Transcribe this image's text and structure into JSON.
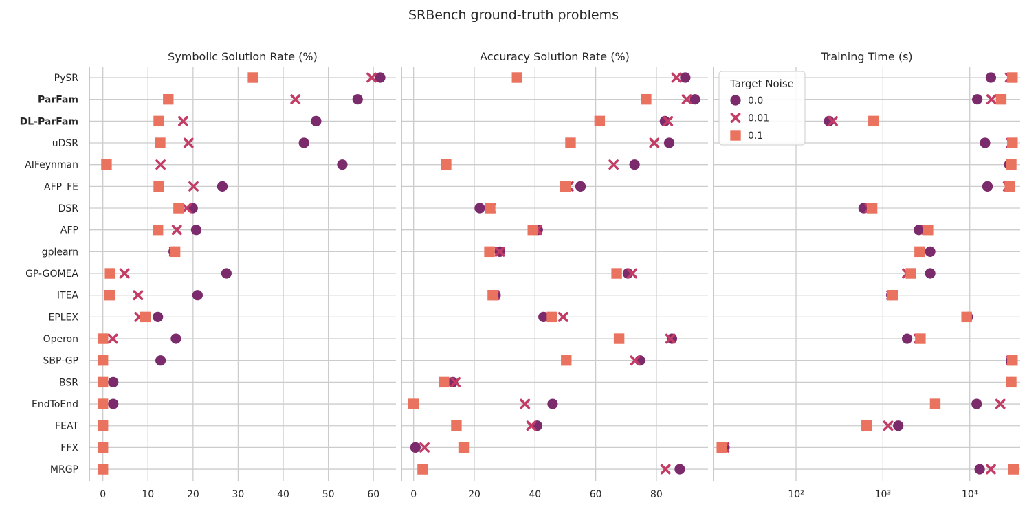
{
  "chart_data": {
    "type": "scatter",
    "title": "SRBench ground-truth problems",
    "methods": [
      "PySR",
      "ParFam",
      "DL-ParFam",
      "uDSR",
      "AIFeynman",
      "AFP_FE",
      "DSR",
      "AFP",
      "gplearn",
      "GP-GOMEA",
      "ITEA",
      "EPLEX",
      "Operon",
      "SBP-GP",
      "BSR",
      "EndToEnd",
      "FEAT",
      "FFX",
      "MRGP"
    ],
    "bold_methods": [
      "ParFam",
      "DL-ParFam"
    ],
    "legend": {
      "title": "Target Noise",
      "entries": [
        {
          "label": "0.0",
          "marker": "circle",
          "color": "#7b2a6b"
        },
        {
          "label": "0.01",
          "marker": "x",
          "color": "#c23c65"
        },
        {
          "label": "0.1",
          "marker": "square",
          "color": "#ea735f"
        }
      ]
    },
    "panels": [
      {
        "title": "Symbolic Solution Rate (%)",
        "scale": "linear",
        "xlim": [
          -3,
          65
        ],
        "ticks": [
          0,
          10,
          20,
          30,
          40,
          50,
          60
        ],
        "tick_labels": [
          "0",
          "10",
          "20",
          "30",
          "40",
          "50",
          "60"
        ],
        "series": [
          {
            "noise": "0.0",
            "values": [
              61.5,
              56.5,
              47.3,
              44.6,
              53.1,
              26.5,
              19.9,
              20.7,
              15.7,
              27.4,
              21.0,
              12.2,
              16.2,
              12.8,
              2.3,
              2.3,
              0.0,
              0.0,
              0.0
            ]
          },
          {
            "noise": "0.01",
            "values": [
              59.6,
              42.7,
              17.8,
              19.0,
              12.8,
              20.1,
              18.6,
              16.4,
              15.8,
              4.8,
              7.8,
              8.1,
              2.2,
              0.0,
              0.0,
              0.0,
              0.0,
              0.0,
              0.0
            ]
          },
          {
            "noise": "0.1",
            "values": [
              33.3,
              14.5,
              12.4,
              12.7,
              0.8,
              12.4,
              16.8,
              12.2,
              16.0,
              1.6,
              1.5,
              9.4,
              0.0,
              0.0,
              0.0,
              0.0,
              0.0,
              0.0,
              0.0
            ]
          }
        ]
      },
      {
        "title": "Accuracy Solution Rate (%)",
        "scale": "linear",
        "xlim": [
          -4,
          97
        ],
        "ticks": [
          0,
          20,
          40,
          60,
          80
        ],
        "tick_labels": [
          "0",
          "20",
          "40",
          "60",
          "80"
        ],
        "series": [
          {
            "noise": "0.0",
            "values": [
              89.5,
              92.7,
              82.8,
              84.2,
              72.8,
              55.0,
              21.8,
              40.9,
              28.4,
              70.6,
              27.0,
              42.8,
              85.1,
              74.6,
              12.9,
              45.8,
              40.7,
              0.6,
              87.7
            ]
          },
          {
            "noise": "0.01",
            "values": [
              86.6,
              90.0,
              83.8,
              79.3,
              65.9,
              51.1,
              25.4,
              40.7,
              28.4,
              72.0,
              26.7,
              49.3,
              84.6,
              73.0,
              13.8,
              36.7,
              38.8,
              3.6,
              83.0
            ]
          },
          {
            "noise": "0.1",
            "values": [
              34.1,
              76.6,
              61.3,
              51.7,
              10.7,
              50.0,
              25.2,
              39.3,
              25.0,
              66.9,
              26.1,
              45.6,
              67.7,
              50.3,
              10.0,
              0.0,
              14.1,
              16.5,
              3.0
            ]
          }
        ]
      },
      {
        "title": "Training Time (s)",
        "scale": "log",
        "xlim": [
          1.05,
          4.58
        ],
        "ticks": [
          2,
          3,
          4
        ],
        "tick_labels": [
          "10²",
          "10³",
          "10⁴"
        ],
        "series": [
          {
            "noise": "0.0",
            "values": [
              17500,
              12200,
              240,
              15000,
              28500,
              16000,
              600,
              2600,
              3500,
              3500,
              1250,
              9500,
              1900,
              30000,
              30000,
              12000,
              1500,
              15,
              13000
            ]
          },
          {
            "noise": "0.01",
            "values": [
              29000,
              17800,
              265,
              30000,
              30000,
              27500,
              700,
              3200,
              2650,
              1900,
              1250,
              9200,
              2600,
              30000,
              30000,
              22500,
              1150,
              15,
              17500
            ]
          },
          {
            "noise": "0.1",
            "values": [
              31000,
              23000,
              780,
              31000,
              30000,
              29000,
              750,
              3300,
              2650,
              2100,
              1300,
              9200,
              2700,
              31000,
              30000,
              4000,
              650,
              14,
              32000
            ]
          }
        ]
      }
    ]
  }
}
